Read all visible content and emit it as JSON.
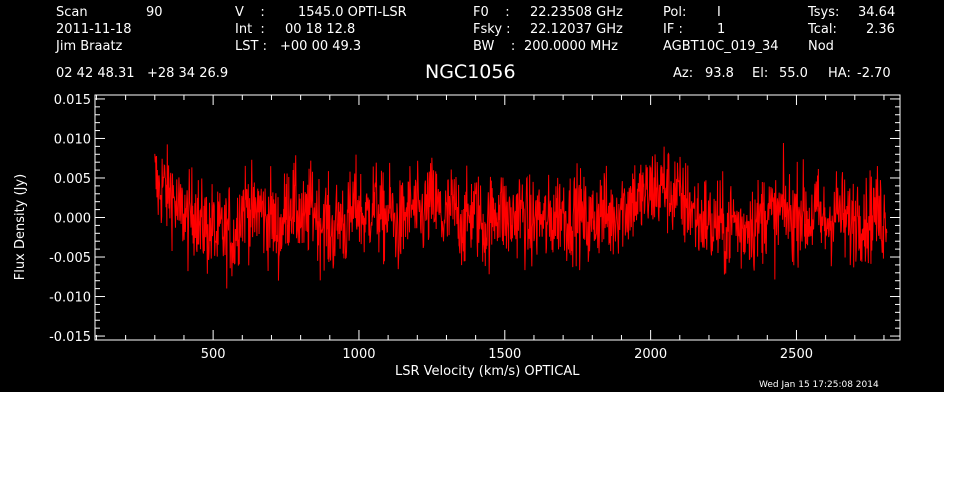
{
  "header": {
    "rows": [
      {
        "c1": "Scan",
        "c1v": "90",
        "c2": "V    :",
        "c2v": "1545.0 OPTI-LSR",
        "c3": "F0    :",
        "c3v": "22.23508 GHz",
        "c4": "Pol:",
        "c4v": "I",
        "c5": "Tsys:",
        "c5v": "34.64"
      },
      {
        "c1": "2011-11-18",
        "c1v": "",
        "c2": "Int  :",
        "c2v": "00 18 12.8",
        "c3": "Fsky :",
        "c3v": "22.12037 GHz",
        "c4": "IF :",
        "c4v": "1",
        "c5": "Tcal:",
        "c5v": "2.36"
      },
      {
        "c1": "Jim Braatz",
        "c1v": "",
        "c2": "LST :",
        "c2v": "+00 00 49.3",
        "c3": "BW    :",
        "c3v": "200.0000 MHz",
        "c4": "AGBT10C_019_34",
        "c4v": "",
        "c5": "Nod",
        "c5v": ""
      }
    ],
    "coords": "02 42 48.31   +28 34 26.9",
    "source": "NGC1056",
    "az_label": "Az:",
    "az_value": "93.8",
    "el_label": "El:",
    "el_value": "55.0",
    "ha_label": "HA:",
    "ha_value": "-2.70",
    "timestamp": "Wed Jan 15 17:25:08 2014"
  },
  "colors": {
    "background": "#000000",
    "axes": "#ffffff",
    "series": "#ff0000"
  },
  "chart_data": {
    "type": "line",
    "title": "NGC1056",
    "xlabel": "LSR Velocity (km/s) OPTICAL",
    "ylabel": "Flux Density (Jy)",
    "xlim": [
      95,
      2855
    ],
    "ylim": [
      -0.0155,
      0.0155
    ],
    "xticks": [
      500,
      1000,
      1500,
      2000,
      2500
    ],
    "xtick_labels": [
      "500",
      "1000",
      "1500",
      "2000",
      "2500"
    ],
    "yticks": [
      -0.015,
      -0.01,
      -0.005,
      0.0,
      0.005,
      0.01,
      0.015
    ],
    "ytick_labels": [
      "-0.015",
      "-0.010",
      "-0.005",
      "0.000",
      "0.005",
      "0.010",
      "0.015"
    ],
    "grid": false,
    "series": [
      {
        "x_start": 300,
        "x_end": 2810,
        "values": [
          0.0052,
          0.0031,
          0.0045,
          0.0028,
          0.0035,
          0.0015,
          0.0002,
          0.0009,
          -0.0008,
          0.0007,
          0.0012,
          -0.0015,
          -0.0006,
          -0.0021,
          -0.001,
          -0.0028,
          -0.0016,
          -0.0024,
          -0.0011,
          -0.0033,
          -0.0005,
          0.0012,
          0.0019,
          0.001,
          -0.0004,
          0.0015,
          0.0008,
          -0.0008,
          0.0005,
          -0.0012,
          -0.002,
          -0.0006,
          0.0012,
          0.0022,
          0.001,
          0.0005,
          -0.0012,
          0.0003,
          0.0017,
          0.0008,
          -0.0009,
          0.0002,
          -0.0014,
          -0.0022,
          -0.0008,
          0.0002,
          -0.0012,
          -0.0005,
          0.001,
          0.0018,
          0.0005,
          -0.0006,
          0.0012,
          0.002,
          0.0009,
          -0.0004,
          0.0002,
          0.001,
          -0.0008,
          -0.0015,
          -0.0005,
          0.0006,
          0.0015,
          0.0008,
          -0.0002,
          0.0005,
          0.0012,
          0.002,
          0.0014,
          0.0004,
          -0.0006,
          0.0004,
          0.0012,
          0.0006,
          -0.0004,
          -0.001,
          0.0002,
          0.001,
          0.0004,
          -0.0008,
          -0.0014,
          -0.0005,
          0.0006,
          0.0014,
          0.0008,
          0.0,
          -0.0008,
          0.0002,
          0.001,
          0.0005,
          -0.0007,
          -0.0012,
          -0.0004,
          0.0002,
          -0.0006,
          -0.001,
          -0.0003,
          0.0004,
          0.001,
          0.0006,
          -0.0003,
          0.0004,
          0.0009,
          0.0002,
          -0.0006,
          -0.0012,
          -0.0004,
          0.0005,
          0.001,
          0.0004,
          -0.0004,
          0.0003,
          0.001,
          0.0016,
          0.0012,
          0.002,
          0.0026,
          0.0018,
          0.003,
          0.0024,
          0.0034,
          0.004,
          0.0031,
          0.0044,
          0.0036,
          0.0028,
          0.0034,
          0.0022,
          0.0014,
          0.002,
          0.0008,
          0.0002,
          -0.0006,
          0.0002,
          -0.0008,
          -0.0015,
          -0.0006,
          -0.0012,
          -0.002,
          -0.001,
          -0.0002,
          -0.0012,
          -0.0018,
          -0.0008,
          -0.0003,
          -0.0012,
          -0.0006,
          0.0003,
          0.001,
          0.0003,
          -0.0005,
          0.0004,
          0.0012,
          0.0006,
          -0.0004,
          0.0005,
          0.0011,
          0.0004,
          -0.0005,
          0.0002,
          0.0008,
          -0.0002,
          -0.001,
          -0.0004,
          0.0004,
          0.001,
          0.0004,
          -0.0004,
          -0.001,
          -0.0002,
          0.0006,
          0.0002,
          -0.0006,
          0.0002,
          0.001,
          0.0004,
          -0.0004,
          0.0002
        ]
      }
    ]
  }
}
